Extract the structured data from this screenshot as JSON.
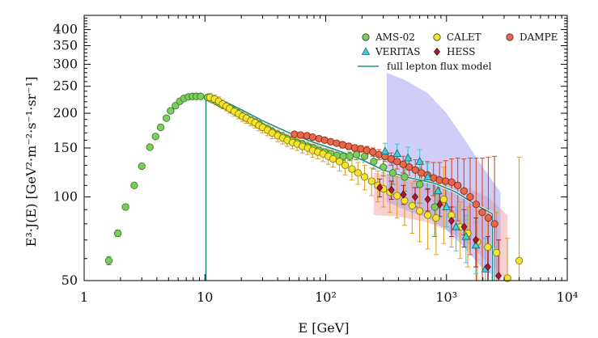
{
  "chart_data": {
    "type": "scatter",
    "title": "",
    "xlabel": "E [GeV]",
    "ylabel": "E³·J(E)  [GeV²·m⁻²·s⁻¹·sr⁻¹]",
    "x_scale": "log",
    "y_scale": "log",
    "xlim": [
      1,
      10000
    ],
    "ylim": [
      50,
      450
    ],
    "x_ticks": [
      {
        "value": 1,
        "label": "1"
      },
      {
        "value": 10,
        "label": "10"
      },
      {
        "value": 100,
        "label": "10²"
      },
      {
        "value": 1000,
        "label": "10³"
      },
      {
        "value": 10000,
        "label": "10⁴"
      }
    ],
    "y_ticks": [
      {
        "value": 50,
        "label": "50"
      },
      {
        "value": 100,
        "label": "100"
      },
      {
        "value": 150,
        "label": "150"
      },
      {
        "value": 200,
        "label": "200"
      },
      {
        "value": 250,
        "label": "250"
      },
      {
        "value": 300,
        "label": "300"
      },
      {
        "value": 350,
        "label": "350"
      },
      {
        "value": 400,
        "label": "400"
      }
    ],
    "legend_position": "top-right",
    "legend": [
      {
        "name": "AMS-02",
        "marker": "circle",
        "color": "#7ccd5e"
      },
      {
        "name": "CALET",
        "marker": "circle",
        "color": "#f5e52a"
      },
      {
        "name": "DAMPE",
        "marker": "circle",
        "color": "#e8674a"
      },
      {
        "name": "VERITAS",
        "marker": "triangle",
        "color": "#3fd0d8"
      },
      {
        "name": "HESS",
        "marker": "diamond",
        "color": "#b0182e"
      },
      {
        "name": "full lepton flux model",
        "marker": "line",
        "color": "#1f8a8a"
      }
    ],
    "series": [
      {
        "name": "AMS-02",
        "marker": "circle",
        "color": "#7ccd5e",
        "edge": "#3e7a2a",
        "err_color": "#3aa03a",
        "points": [
          [
            1.6,
            59,
            2
          ],
          [
            1.9,
            74,
            2
          ],
          [
            2.2,
            92,
            2
          ],
          [
            2.6,
            110,
            2
          ],
          [
            3.0,
            129,
            2
          ],
          [
            3.5,
            151,
            2
          ],
          [
            3.9,
            165,
            2
          ],
          [
            4.3,
            178,
            2
          ],
          [
            4.8,
            192,
            2
          ],
          [
            5.2,
            204,
            2
          ],
          [
            5.7,
            213,
            2
          ],
          [
            6.2,
            221,
            2
          ],
          [
            6.7,
            226,
            2
          ],
          [
            7.3,
            229,
            2
          ],
          [
            7.9,
            230,
            2
          ],
          [
            8.5,
            230,
            2
          ],
          [
            9.2,
            230,
            2
          ],
          [
            10.5,
            228,
            2
          ],
          [
            11.5,
            224,
            2
          ],
          [
            12.5,
            220,
            2
          ],
          [
            13.5,
            216,
            2
          ],
          [
            14.5,
            213,
            2
          ],
          [
            15.5,
            210,
            2
          ],
          [
            17,
            205,
            2
          ],
          [
            18.5,
            201,
            2
          ],
          [
            20,
            197,
            2
          ],
          [
            22,
            193,
            2
          ],
          [
            24,
            189,
            3
          ],
          [
            26,
            186,
            3
          ],
          [
            28,
            183,
            3
          ],
          [
            30,
            179,
            3
          ],
          [
            33,
            176,
            3
          ],
          [
            36,
            172,
            3
          ],
          [
            40,
            168,
            3
          ],
          [
            44,
            165,
            3
          ],
          [
            48,
            162,
            3
          ],
          [
            53,
            160,
            3
          ],
          [
            58,
            157,
            3
          ],
          [
            64,
            155,
            4
          ],
          [
            71,
            152,
            4
          ],
          [
            79,
            150,
            4
          ],
          [
            88,
            147,
            4
          ],
          [
            98,
            145,
            4
          ],
          [
            110,
            143,
            4
          ],
          [
            124,
            141,
            5
          ],
          [
            140,
            140,
            5
          ],
          [
            158,
            140,
            5
          ],
          [
            180,
            142,
            6
          ],
          [
            210,
            140,
            7
          ],
          [
            250,
            134,
            8
          ],
          [
            300,
            128,
            9
          ],
          [
            360,
            122,
            11
          ],
          [
            450,
            118,
            13
          ],
          [
            600,
            111,
            16
          ],
          [
            800,
            92,
            20
          ]
        ]
      },
      {
        "name": "CALET",
        "marker": "circle",
        "color": "#f5e52a",
        "edge": "#8a7a10",
        "err_color": "#e0a020",
        "points": [
          [
            11,
            228,
            8
          ],
          [
            12,
            225,
            8
          ],
          [
            13,
            221,
            8
          ],
          [
            14,
            216,
            8
          ],
          [
            15,
            212,
            8
          ],
          [
            16,
            208,
            8
          ],
          [
            17.5,
            203,
            8
          ],
          [
            19,
            199,
            8
          ],
          [
            20.5,
            195,
            8
          ],
          [
            22,
            192,
            8
          ],
          [
            24,
            188,
            8
          ],
          [
            26,
            185,
            8
          ],
          [
            28,
            181,
            8
          ],
          [
            30,
            178,
            8
          ],
          [
            33,
            174,
            8
          ],
          [
            36,
            170,
            8
          ],
          [
            40,
            166,
            8
          ],
          [
            44,
            163,
            8
          ],
          [
            48,
            160,
            8
          ],
          [
            53,
            157,
            8
          ],
          [
            58,
            155,
            8
          ],
          [
            64,
            152,
            8
          ],
          [
            71,
            150,
            8
          ],
          [
            78,
            147,
            8
          ],
          [
            86,
            145,
            8
          ],
          [
            95,
            143,
            9
          ],
          [
            105,
            140,
            9
          ],
          [
            115,
            137,
            9
          ],
          [
            130,
            134,
            10
          ],
          [
            145,
            130,
            10
          ],
          [
            165,
            126,
            11
          ],
          [
            185,
            122,
            11
          ],
          [
            210,
            118,
            12
          ],
          [
            240,
            114,
            13
          ],
          [
            270,
            110,
            14
          ],
          [
            300,
            107,
            15
          ],
          [
            340,
            104,
            16
          ],
          [
            390,
            101,
            17
          ],
          [
            450,
            97,
            18
          ],
          [
            520,
            93,
            19
          ],
          [
            600,
            89,
            20
          ],
          [
            700,
            86,
            21
          ],
          [
            820,
            84,
            22
          ],
          [
            950,
            98,
            30
          ],
          [
            1100,
            86,
            20
          ],
          [
            1300,
            78,
            18
          ],
          [
            1500,
            74,
            18
          ],
          [
            1800,
            69,
            20
          ],
          [
            2200,
            66,
            25
          ],
          [
            2600,
            63,
            25
          ],
          [
            3200,
            51,
            20
          ],
          [
            4000,
            59,
            80
          ]
        ]
      },
      {
        "name": "DAMPE",
        "marker": "circle",
        "color": "#e8674a",
        "edge": "#8a2a18",
        "err_color": "#d84a2a",
        "points": [
          [
            55,
            168,
            3
          ],
          [
            62,
            167,
            3
          ],
          [
            70,
            166,
            3
          ],
          [
            78,
            164,
            3
          ],
          [
            88,
            162,
            3
          ],
          [
            98,
            160,
            3
          ],
          [
            110,
            158,
            3
          ],
          [
            123,
            156,
            3
          ],
          [
            138,
            154,
            4
          ],
          [
            155,
            152,
            4
          ],
          [
            174,
            150,
            4
          ],
          [
            195,
            149,
            4
          ],
          [
            219,
            147,
            5
          ],
          [
            246,
            145,
            5
          ],
          [
            276,
            142,
            6
          ],
          [
            310,
            140,
            6
          ],
          [
            348,
            137,
            7
          ],
          [
            390,
            134,
            8
          ],
          [
            438,
            131,
            9
          ],
          [
            492,
            128,
            10
          ],
          [
            552,
            125,
            11
          ],
          [
            620,
            122,
            12
          ],
          [
            695,
            120,
            14
          ],
          [
            780,
            117,
            16
          ],
          [
            876,
            115,
            18
          ],
          [
            983,
            114,
            21
          ],
          [
            1104,
            113,
            24
          ],
          [
            1240,
            110,
            28
          ],
          [
            1395,
            105,
            32
          ],
          [
            1570,
            100,
            38
          ],
          [
            1760,
            94,
            44
          ],
          [
            1980,
            88,
            50
          ],
          [
            2220,
            84,
            55
          ],
          [
            2500,
            80,
            60
          ]
        ]
      },
      {
        "name": "VERITAS",
        "marker": "triangle",
        "color": "#3fd0d8",
        "edge": "#1a6a70",
        "err_color": "#3fc8d0",
        "points": [
          [
            310,
            146,
            10
          ],
          [
            390,
            143,
            12
          ],
          [
            480,
            138,
            13
          ],
          [
            600,
            134,
            14
          ],
          [
            700,
            118,
            14
          ],
          [
            850,
            105,
            14
          ],
          [
            1000,
            92,
            14
          ],
          [
            1200,
            78,
            14
          ],
          [
            1450,
            72,
            14
          ],
          [
            1750,
            67,
            14
          ],
          [
            2100,
            55,
            16
          ],
          [
            2500,
            48,
            18
          ]
        ]
      },
      {
        "name": "HESS",
        "marker": "diamond",
        "color": "#b0182e",
        "edge": "#5a0818",
        "err_color": "#b0182e",
        "points": [
          [
            280,
            108,
            8
          ],
          [
            350,
            106,
            8
          ],
          [
            440,
            102,
            8
          ],
          [
            550,
            100,
            8
          ],
          [
            700,
            98,
            9
          ],
          [
            880,
            94,
            9
          ],
          [
            1100,
            82,
            10
          ],
          [
            1400,
            78,
            12
          ],
          [
            1750,
            70,
            14
          ],
          [
            2200,
            56,
            16
          ],
          [
            2700,
            52,
            18
          ]
        ]
      }
    ],
    "model_line": {
      "name": "full lepton flux model",
      "color": "#1f8a8a",
      "points": [
        [
          10.2,
          50
        ],
        [
          10.2,
          232
        ],
        [
          12,
          228
        ],
        [
          15,
          219
        ],
        [
          20,
          206
        ],
        [
          30,
          188
        ],
        [
          50,
          170
        ],
        [
          80,
          157
        ],
        [
          120,
          148
        ],
        [
          200,
          136
        ],
        [
          300,
          125
        ],
        [
          500,
          117
        ],
        [
          800,
          112
        ],
        [
          1200,
          104
        ],
        [
          1800,
          93
        ],
        [
          2400,
          87
        ],
        [
          2400,
          50
        ]
      ]
    },
    "bands": [
      {
        "name": "HESS band",
        "color": "#f4a8a8",
        "opacity": 0.55,
        "upper": [
          [
            250,
            122
          ],
          [
            400,
            120
          ],
          [
            700,
            116
          ],
          [
            1000,
            112
          ],
          [
            1500,
            108
          ],
          [
            2200,
            100
          ],
          [
            3200,
            86
          ]
        ],
        "lower": [
          [
            250,
            86
          ],
          [
            400,
            85
          ],
          [
            700,
            81
          ],
          [
            1000,
            76
          ],
          [
            1500,
            68
          ],
          [
            2200,
            58
          ],
          [
            3200,
            50
          ]
        ]
      },
      {
        "name": "VERITAS band",
        "color": "#a6a6f2",
        "opacity": 0.55,
        "upper": [
          [
            320,
            280
          ],
          [
            450,
            264
          ],
          [
            700,
            236
          ],
          [
            1000,
            200
          ],
          [
            1400,
            162
          ],
          [
            2000,
            128
          ],
          [
            2800,
            104
          ]
        ],
        "lower": [
          [
            320,
            96
          ],
          [
            450,
            90
          ],
          [
            700,
            84
          ],
          [
            1000,
            76
          ],
          [
            1400,
            66
          ],
          [
            2000,
            55
          ],
          [
            2800,
            50
          ]
        ]
      }
    ]
  }
}
